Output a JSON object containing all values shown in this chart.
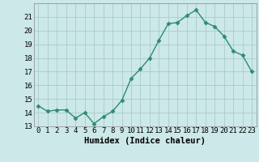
{
  "x": [
    0,
    1,
    2,
    3,
    4,
    5,
    6,
    7,
    8,
    9,
    10,
    11,
    12,
    13,
    14,
    15,
    16,
    17,
    18,
    19,
    20,
    21,
    22,
    23
  ],
  "y": [
    14.5,
    14.1,
    14.2,
    14.2,
    13.6,
    14.0,
    13.2,
    13.7,
    14.1,
    14.9,
    16.5,
    17.2,
    18.0,
    19.3,
    20.5,
    20.6,
    21.1,
    21.5,
    20.6,
    20.3,
    19.6,
    18.5,
    18.2,
    17.0
  ],
  "line_color": "#2e8b70",
  "marker": "D",
  "marker_size": 2.5,
  "bg_color": "#cce8e8",
  "grid_color": "#aacccc",
  "xlabel": "Humidex (Indice chaleur)",
  "xlim": [
    -0.5,
    23.5
  ],
  "ylim": [
    13,
    22.0
  ],
  "yticks": [
    13,
    14,
    15,
    16,
    17,
    18,
    19,
    20,
    21
  ],
  "xticks": [
    0,
    1,
    2,
    3,
    4,
    5,
    6,
    7,
    8,
    9,
    10,
    11,
    12,
    13,
    14,
    15,
    16,
    17,
    18,
    19,
    20,
    21,
    22,
    23
  ],
  "xlabel_fontsize": 7.5,
  "tick_fontsize": 6.5,
  "line_width": 1.0
}
